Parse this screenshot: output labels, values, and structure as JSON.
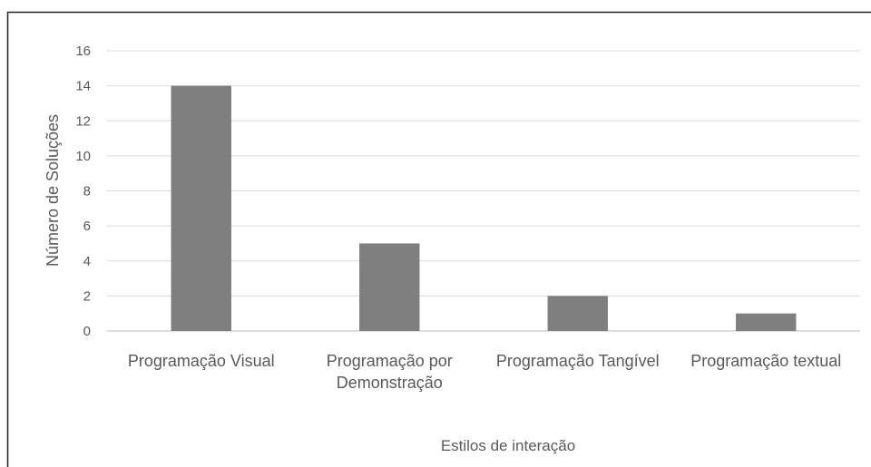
{
  "chart_data": {
    "type": "bar",
    "categories": [
      "Programação Visual",
      "Programação por Demonstração",
      "Programação Tangível",
      "Programação textual"
    ],
    "values": [
      14,
      5,
      2,
      1
    ],
    "color": "#7f7f7f",
    "xlabel": "Estilos de interação",
    "ylabel": "Número de Soluções",
    "ylim": [
      0,
      16
    ],
    "yticks": [
      0,
      2,
      4,
      6,
      8,
      10,
      12,
      14,
      16
    ],
    "grid": true
  }
}
